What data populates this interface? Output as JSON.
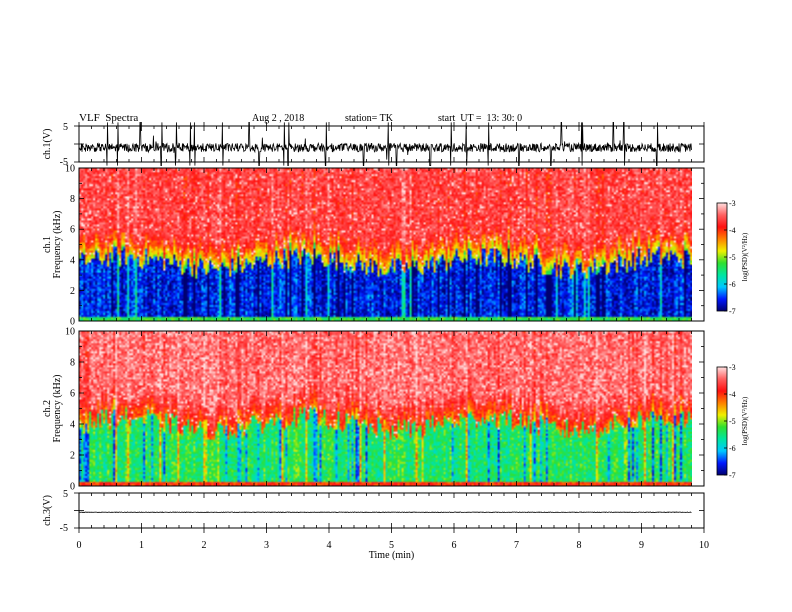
{
  "header": {
    "title": "VLF  Spectra",
    "date": "Aug 2 , 2018",
    "station": "station= TK",
    "start": "start  UT =  13: 30: 0"
  },
  "colors": {
    "cmap": [
      "#000070",
      "#0018ff",
      "#00c8ff",
      "#00e6a0",
      "#30e030",
      "#f0f000",
      "#ff8000",
      "#ff1010",
      "#ff6060",
      "#ffe0e0"
    ]
  },
  "chart_data": [
    {
      "type": "line",
      "name": "ch1-waveform",
      "ylabel": "ch.1(V)",
      "ylim": [
        -5,
        5
      ],
      "yticks": [
        "5",
        "-5"
      ],
      "xlim": [
        0,
        10
      ],
      "extent_x": 9.8,
      "baseline": -1.0,
      "noise_amplitude": 1.2,
      "spikes": [
        0.45,
        0.62,
        0.98,
        1.32,
        1.55,
        1.78,
        1.85,
        2.3,
        2.72,
        2.88,
        3.28,
        3.35,
        3.95,
        4.55,
        4.95,
        5.08,
        5.62,
        5.95,
        6.2,
        6.55,
        7.04,
        7.55,
        7.72,
        8.05,
        8.55,
        8.72,
        9.25
      ]
    },
    {
      "type": "heatmap",
      "name": "ch1-spectrogram",
      "ylabel_line1": "ch.1",
      "ylabel_line2": "Frequency  (kHz)",
      "ylim": [
        0,
        10
      ],
      "yticks": [
        "0",
        "2",
        "4",
        "6",
        "8",
        "10"
      ],
      "xlim": [
        0,
        10
      ],
      "extent_x": 9.8,
      "colorbar": {
        "ticks": [
          "-3",
          "-4",
          "-5",
          "-6",
          "-7"
        ],
        "label": "log(PSD)(V²/Hz)",
        "range": [
          -7,
          -3
        ]
      },
      "low_band_top_khz": 3.8,
      "low_band_level": -6.6,
      "high_band_level": -3.6,
      "bottom_level": -5.3
    },
    {
      "type": "heatmap",
      "name": "ch2-spectrogram",
      "ylabel_line1": "ch.2",
      "ylabel_line2": "Frequency  (kHz)",
      "ylim": [
        0,
        10
      ],
      "yticks": [
        "0",
        "2",
        "4",
        "6",
        "8",
        "10"
      ],
      "xlim": [
        0,
        10
      ],
      "extent_x": 9.8,
      "colorbar": {
        "ticks": [
          "-3",
          "-4",
          "-5",
          "-6",
          "-7"
        ],
        "label": "log(PSD)(V²/Hz)",
        "range": [
          -7,
          -3
        ]
      },
      "low_band_top_khz": 4.0,
      "low_band_level": -5.4,
      "high_band_level": -3.4,
      "bottom_level": -4.0
    },
    {
      "type": "line",
      "name": "ch3-waveform",
      "ylabel": "ch.3(V)",
      "ylim": [
        -5,
        5
      ],
      "yticks": [
        "5",
        "-5"
      ],
      "xlim": [
        0,
        10
      ],
      "extent_x": 9.8,
      "baseline": -0.5,
      "noise_amplitude": 0.08,
      "xlabel": "Time  (min)",
      "xticks": [
        "0",
        "1",
        "2",
        "3",
        "4",
        "5",
        "6",
        "7",
        "8",
        "9",
        "10"
      ]
    }
  ]
}
